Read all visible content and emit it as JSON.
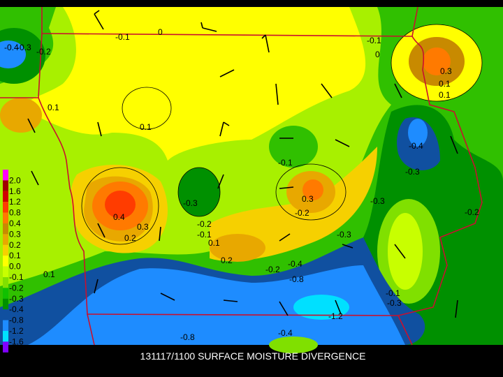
{
  "title": "131117/1100 SURFACE MOISTURE DIVERGENCE",
  "legend": {
    "labels": [
      "2.0",
      "1.6",
      "1.2",
      "0.8",
      "0.4",
      "0.3",
      "0.2",
      "0.1",
      "0.0",
      "-0.1",
      "-0.2",
      "-0.3",
      "-0.4",
      "-0.8",
      "-1.2",
      "-1.6"
    ],
    "colors": [
      "#ff00ff",
      "#a00000",
      "#d00000",
      "#ff3c00",
      "#ff7a00",
      "#c88a00",
      "#e8a800",
      "#f6d000",
      "#ffff00",
      "#c8ff00",
      "#80e000",
      "#10c000",
      "#009000",
      "#1050a0",
      "#1e8cff",
      "#00e0ff",
      "#8000ff"
    ]
  },
  "contour_labels": [
    "-0.4",
    "-0.3",
    "-0.2",
    "-0.1",
    "0",
    "0.1",
    "0.1",
    "-0.1",
    "0",
    "0.3",
    "0.1",
    "0.1",
    "-0.4",
    "-0.3",
    "-0.1",
    "0.3",
    "-0.2",
    "-0.3",
    "-0.3",
    "0.4",
    "0.3",
    "0.2",
    "-0.2",
    "-0.1",
    "0.1",
    "0.2",
    "-0.2",
    "-0.4",
    "-0.8",
    "-0.1",
    "-0.3",
    "-0.2",
    "0.1",
    "-1.2",
    "-0.8",
    "-0.4",
    "-0.3"
  ]
}
